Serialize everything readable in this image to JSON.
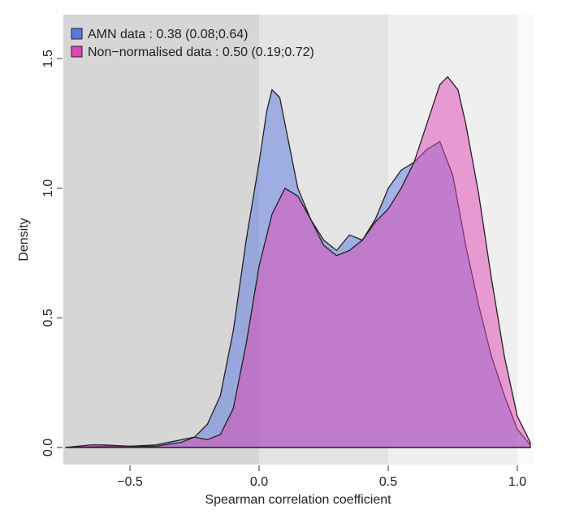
{
  "chart_data": {
    "type": "area",
    "xlabel": "Spearman correlation coefficient",
    "ylabel": "Density",
    "xlim": [
      -0.758,
      1.066
    ],
    "ylim": [
      -0.066,
      1.67
    ],
    "xticks": [
      {
        "value": -0.5,
        "label": "−0.5"
      },
      {
        "value": 0,
        "label": "0.0"
      },
      0.5,
      {
        "value": 1,
        "label": "1.0"
      }
    ],
    "yticks": [
      {
        "value": 0,
        "label": "0.0"
      },
      0.5,
      {
        "value": 1,
        "label": "1.0"
      },
      1.5
    ],
    "legend": "top-left",
    "series": [
      {
        "name": "AMN data : 0.38 (0.08;0.64)",
        "color": "#5a78e0",
        "x": [
          -0.75,
          -0.6,
          -0.5,
          -0.4,
          -0.35,
          -0.3,
          -0.25,
          -0.2,
          -0.15,
          -0.1,
          -0.05,
          0.0,
          0.03,
          0.05,
          0.08,
          0.1,
          0.15,
          0.2,
          0.25,
          0.3,
          0.35,
          0.4,
          0.45,
          0.5,
          0.55,
          0.6,
          0.65,
          0.7,
          0.75,
          0.8,
          0.85,
          0.9,
          0.95,
          1.0,
          1.05
        ],
        "values": [
          0,
          0.005,
          0.005,
          0.01,
          0.02,
          0.03,
          0.04,
          0.09,
          0.2,
          0.45,
          0.8,
          1.1,
          1.3,
          1.38,
          1.35,
          1.25,
          1.0,
          0.88,
          0.8,
          0.76,
          0.82,
          0.8,
          0.88,
          1.0,
          1.07,
          1.1,
          1.15,
          1.18,
          1.05,
          0.78,
          0.55,
          0.35,
          0.2,
          0.07,
          0.01
        ]
      },
      {
        "name": "Non−normalised data : 0.50 (0.19;0.72)",
        "color": "#e046b4",
        "x": [
          -0.75,
          -0.65,
          -0.6,
          -0.5,
          -0.4,
          -0.3,
          -0.25,
          -0.2,
          -0.15,
          -0.1,
          -0.05,
          0.0,
          0.05,
          0.1,
          0.15,
          0.2,
          0.25,
          0.3,
          0.35,
          0.4,
          0.45,
          0.5,
          0.55,
          0.6,
          0.65,
          0.7,
          0.73,
          0.77,
          0.8,
          0.85,
          0.9,
          0.95,
          1.0,
          1.05
        ],
        "values": [
          0,
          0.01,
          0.01,
          0.005,
          0.005,
          0.02,
          0.04,
          0.03,
          0.05,
          0.15,
          0.4,
          0.7,
          0.9,
          1.0,
          0.97,
          0.88,
          0.78,
          0.74,
          0.76,
          0.8,
          0.87,
          0.92,
          1.0,
          1.1,
          1.25,
          1.4,
          1.43,
          1.38,
          1.25,
          0.98,
          0.65,
          0.35,
          0.12,
          0.02
        ]
      }
    ]
  }
}
